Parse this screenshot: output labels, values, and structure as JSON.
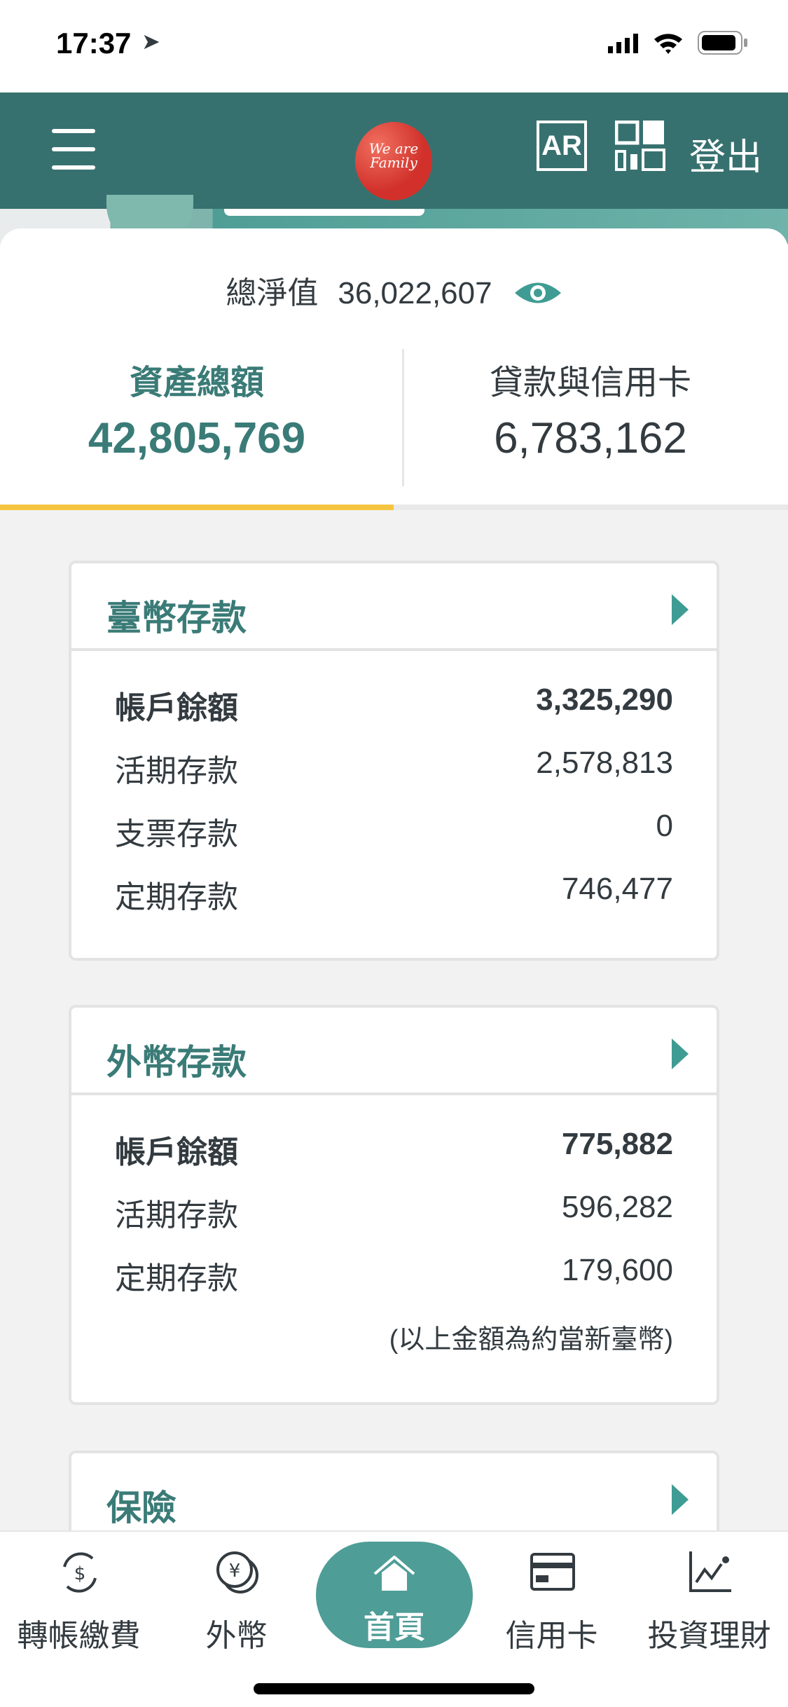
{
  "status_bar": {
    "time": "17:37"
  },
  "header": {
    "logo_text": "We are Family",
    "ar_label": "AR",
    "logout_label": "登出"
  },
  "summary": {
    "net_worth_label": "總淨值",
    "net_worth_value": "36,022,607"
  },
  "tabs": [
    {
      "label": "資產總額",
      "value": "42,805,769",
      "active": true
    },
    {
      "label": "貸款與信用卡",
      "value": "6,783,162",
      "active": false
    }
  ],
  "cards": [
    {
      "title": "臺幣存款",
      "rows": [
        {
          "label": "帳戶餘額",
          "value": "3,325,290"
        },
        {
          "label": "活期存款",
          "value": "2,578,813"
        },
        {
          "label": "支票存款",
          "value": "0"
        },
        {
          "label": "定期存款",
          "value": "746,477"
        }
      ]
    },
    {
      "title": "外幣存款",
      "rows": [
        {
          "label": "帳戶餘額",
          "value": "775,882"
        },
        {
          "label": "活期存款",
          "value": "596,282"
        },
        {
          "label": "定期存款",
          "value": "179,600"
        }
      ],
      "note": "(以上金額為約當新臺幣)"
    },
    {
      "title": "保險"
    }
  ],
  "bottom_nav": [
    {
      "label": "轉帳繳費",
      "icon": "transfer-icon"
    },
    {
      "label": "外幣",
      "icon": "yen-coin-icon"
    },
    {
      "label": "首頁",
      "icon": "home-icon",
      "active": true
    },
    {
      "label": "信用卡",
      "icon": "credit-card-icon"
    },
    {
      "label": "投資理財",
      "icon": "chart-icon"
    }
  ],
  "colors": {
    "header": "#37716f",
    "accent": "#3a7b77",
    "tab_indicator": "#f5c542",
    "home_pill": "#4f9d97"
  }
}
